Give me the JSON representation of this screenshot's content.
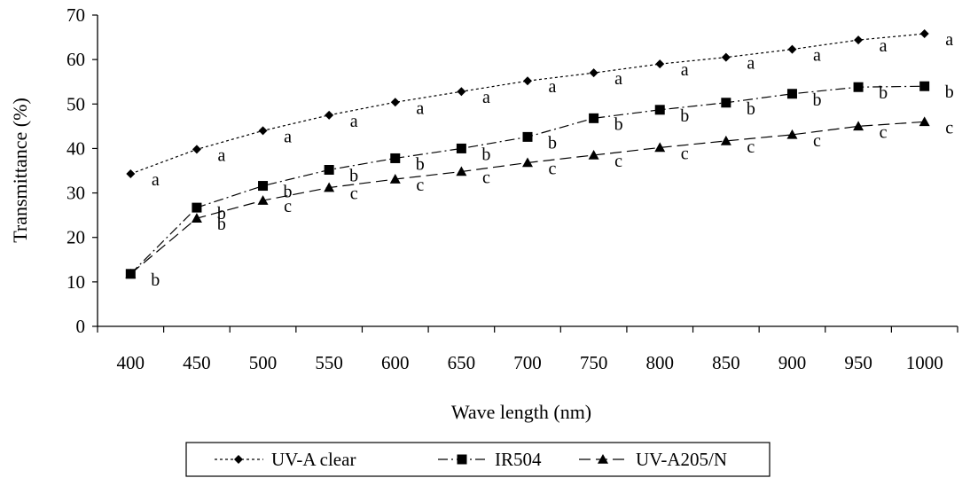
{
  "chart_data": {
    "type": "line",
    "title": "",
    "xlabel": "Wave length (nm)",
    "ylabel": "Transmittance (%)",
    "ylim": [
      0,
      70
    ],
    "yticks": [
      "0",
      "10",
      "20",
      "30",
      "40",
      "50",
      "60",
      "70"
    ],
    "categories": [
      "400",
      "450",
      "500",
      "550",
      "600",
      "650",
      "700",
      "750",
      "800",
      "850",
      "900",
      "950",
      "1000"
    ],
    "grid": false,
    "legend_position": "bottom",
    "series": [
      {
        "name": "UV-A clear",
        "marker": "diamond",
        "dash": "short",
        "values": [
          34.3,
          39.8,
          44.0,
          47.5,
          50.4,
          52.8,
          55.2,
          57.0,
          59.0,
          60.5,
          62.3,
          64.4,
          65.8
        ],
        "letters": [
          "a",
          "a",
          "a",
          "a",
          "a",
          "a",
          "a",
          "a",
          "a",
          "a",
          "a",
          "a",
          "a"
        ]
      },
      {
        "name": "IR504",
        "marker": "square",
        "dash": "dash-dot",
        "values": [
          11.8,
          26.7,
          31.6,
          35.2,
          37.8,
          40.0,
          42.6,
          46.8,
          48.7,
          50.3,
          52.3,
          53.8,
          54.0
        ],
        "letters": [
          "b",
          "b",
          "b",
          "b",
          "b",
          "b",
          "b",
          "b",
          "b",
          "b",
          "b",
          "b",
          "b"
        ]
      },
      {
        "name": "UV-A205/N",
        "marker": "triangle",
        "dash": "long",
        "values": [
          11.8,
          24.3,
          28.3,
          31.2,
          33.1,
          34.8,
          36.8,
          38.5,
          40.2,
          41.7,
          43.1,
          45.0,
          46.0
        ],
        "letters": [
          "",
          "b",
          "c",
          "c",
          "c",
          "c",
          "c",
          "c",
          "c",
          "c",
          "c",
          "c",
          "c"
        ]
      }
    ]
  }
}
